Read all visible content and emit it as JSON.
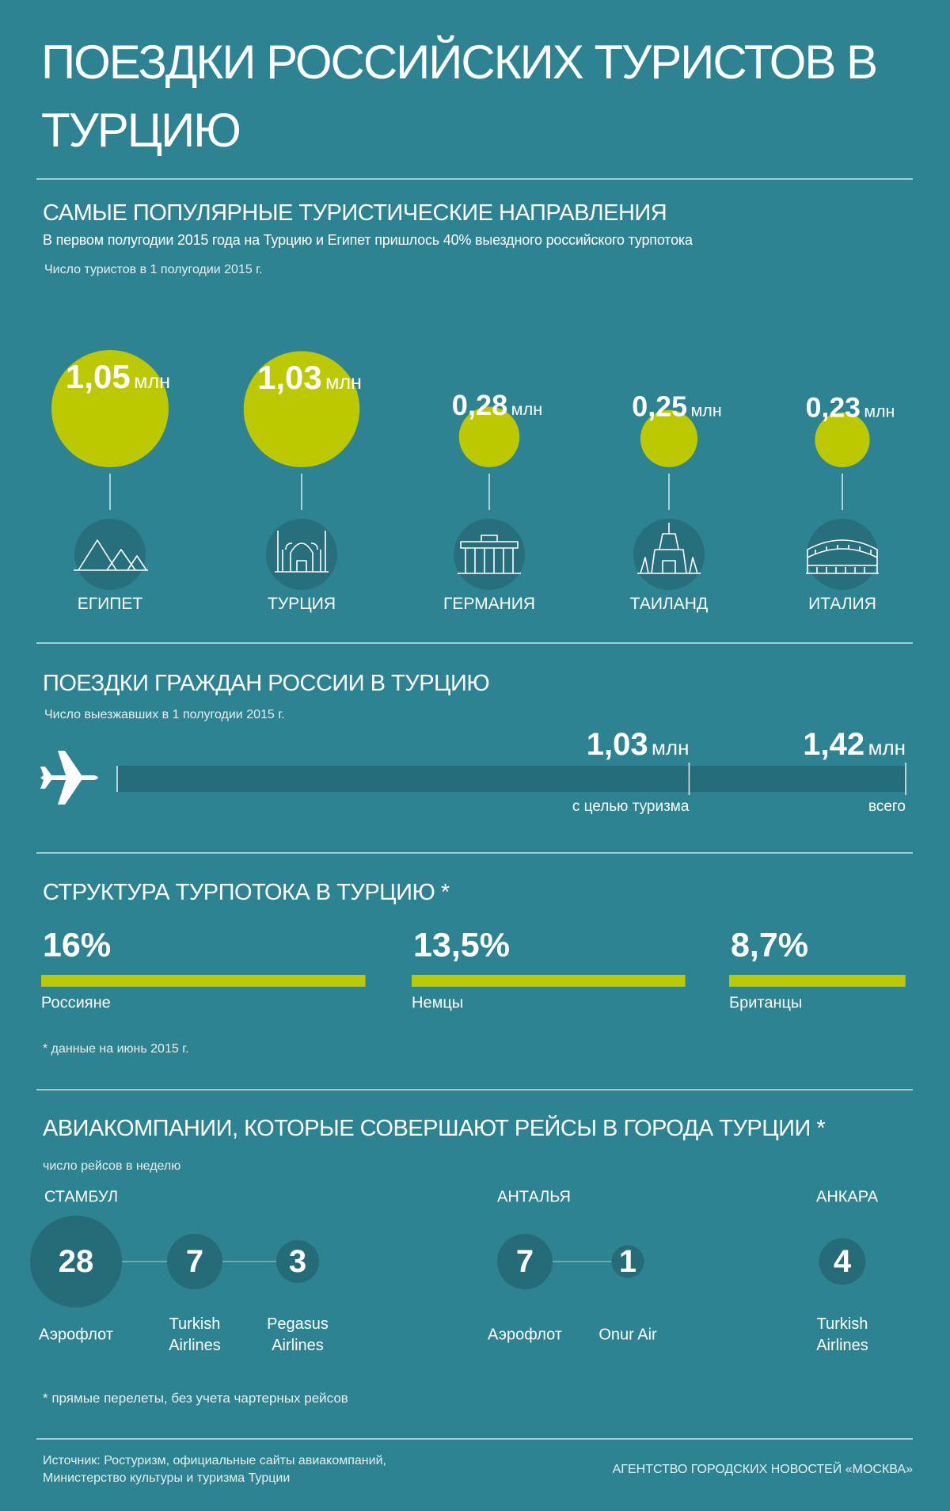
{
  "header": {
    "title": "ПОЕЗДКИ РОССИЙСКИХ ТУРИСТОВ В ТУРЦИЮ"
  },
  "destinations": {
    "type": "bubble",
    "title": "САМЫЕ ПОПУЛЯРНЫЕ ТУРИСТИЧЕСКИЕ НАПРАВЛЕНИЯ",
    "subtitle": "В первом полугодии 2015 года на Турцию и Египет пришлось 40% выездного российского турпотока",
    "note": "Число туристов в 1 полугодии 2015 г.",
    "unit": "млн",
    "color": "#bdc900",
    "categories": [
      "ЕГИПЕТ",
      "ТУРЦИЯ",
      "ГЕРМАНИЯ",
      "ТАИЛАНД",
      "ИТАЛИЯ"
    ],
    "values": [
      1.05,
      1.03,
      0.28,
      0.25,
      0.23
    ],
    "value_labels": [
      "1,05",
      "1,03",
      "0,28",
      "0,25",
      "0,23"
    ]
  },
  "trips": {
    "type": "bar",
    "title": "ПОЕЗДКИ ГРАЖДАН РОССИИ В ТУРЦИЮ",
    "note": "Число выезжавших  в 1 полугодии 2015 г.",
    "unit": "млн",
    "categories": [
      "с целью туризма",
      "всего"
    ],
    "values": [
      1.03,
      1.42
    ],
    "value_labels": [
      "1,03",
      "1,42"
    ]
  },
  "structure": {
    "type": "bar",
    "title": "СТРУКТУРА ТУРПОТОКА В ТУРЦИЮ *",
    "color": "#bdc900",
    "categories": [
      "Россияне",
      "Немцы",
      "Британцы"
    ],
    "values": [
      16,
      13.5,
      8.7
    ],
    "value_labels": [
      "16%",
      "13,5%",
      "8,7%"
    ],
    "footnote": "* данные на июнь 2015 г."
  },
  "airlines": {
    "type": "bubble",
    "title": "АВИАКОМПАНИИ, КОТОРЫЕ СОВЕРШАЮТ РЕЙСЫ В ГОРОДА ТУРЦИИ *",
    "note": "число рейсов в неделю",
    "cities": [
      {
        "name": "СТАМБУЛ",
        "airlines": [
          "Аэрофлот",
          "Turkish Airlines",
          "Pegasus Airlines"
        ],
        "values": [
          28,
          7,
          3
        ]
      },
      {
        "name": "АНТАЛЬЯ",
        "airlines": [
          "Аэрофлот",
          "Onur Air"
        ],
        "values": [
          7,
          1
        ]
      },
      {
        "name": "АНКАРА",
        "airlines": [
          "Turkish Airlines"
        ],
        "values": [
          4
        ]
      }
    ],
    "footnote": "* прямые перелеты, без учета чартерных рейсов"
  },
  "footer": {
    "source": "Источник: Ростуризм, официальные сайты авиакомпаний, Министерство культуры и туризма Турции",
    "agency": "АГЕНТСТВО ГОРОДСКИХ НОВОСТЕЙ «МОСКВА»"
  }
}
